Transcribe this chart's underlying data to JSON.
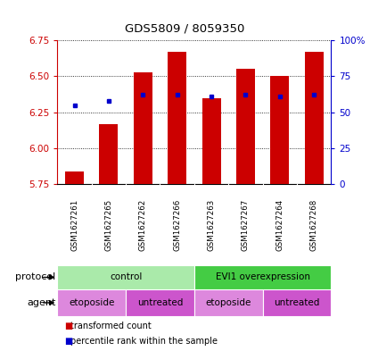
{
  "title": "GDS5809 / 8059350",
  "samples": [
    "GSM1627261",
    "GSM1627265",
    "GSM1627262",
    "GSM1627266",
    "GSM1627263",
    "GSM1627267",
    "GSM1627264",
    "GSM1627268"
  ],
  "bar_values": [
    5.84,
    6.17,
    6.53,
    6.67,
    6.35,
    6.55,
    6.5,
    6.67
  ],
  "bar_bottom": 5.75,
  "percentile_values": [
    6.3,
    6.33,
    6.37,
    6.37,
    6.36,
    6.37,
    6.36,
    6.37
  ],
  "ylim": [
    5.75,
    6.75
  ],
  "yticks_left": [
    5.75,
    6.0,
    6.25,
    6.5,
    6.75
  ],
  "yticks_right": [
    0,
    25,
    50,
    75,
    100
  ],
  "bar_color": "#CC0000",
  "dot_color": "#0000CC",
  "background_color": "#ffffff",
  "protocol_groups": [
    {
      "label": "control",
      "start": 0,
      "end": 4,
      "color": "#aaeaaa"
    },
    {
      "label": "EVI1 overexpression",
      "start": 4,
      "end": 8,
      "color": "#44cc44"
    }
  ],
  "agent_groups": [
    {
      "label": "etoposide",
      "start": 0,
      "end": 2,
      "color": "#dd88dd"
    },
    {
      "label": "untreated",
      "start": 2,
      "end": 4,
      "color": "#cc55cc"
    },
    {
      "label": "etoposide",
      "start": 4,
      "end": 6,
      "color": "#dd88dd"
    },
    {
      "label": "untreated",
      "start": 6,
      "end": 8,
      "color": "#cc55cc"
    }
  ]
}
